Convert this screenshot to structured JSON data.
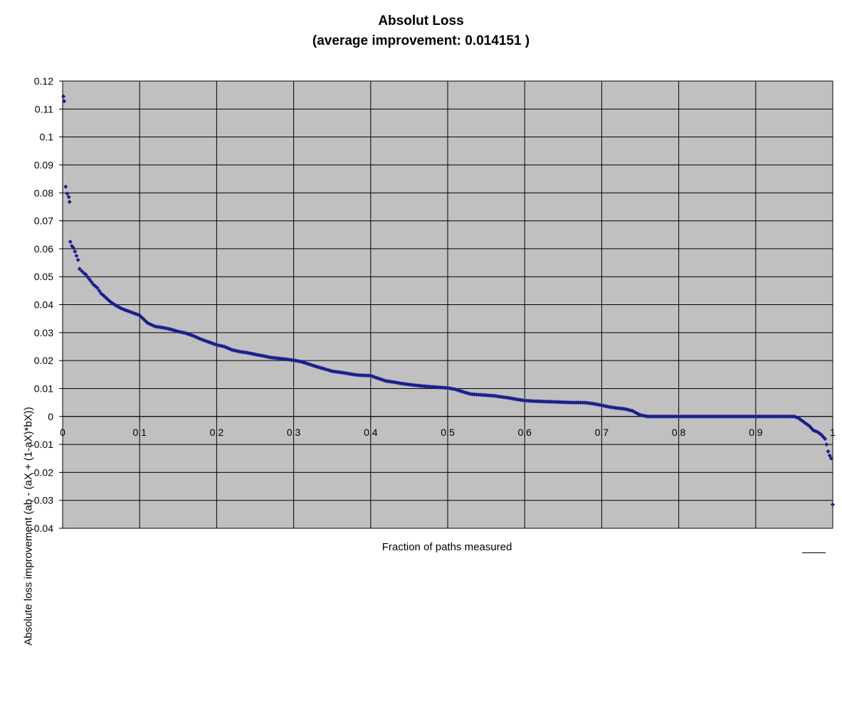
{
  "chart_data": {
    "type": "scatter",
    "title": "Absolut Loss",
    "subtitle": "(average improvement:  0.014151 )",
    "xlabel": "Fraction of paths measured",
    "ylabel": "Absolute loss improvement (ab - (aX + (1-aX)*bX))",
    "xlim": [
      0,
      1
    ],
    "ylim": [
      -0.04,
      0.12
    ],
    "x_ticks": [
      "0",
      "0.1",
      "0.2",
      "0.3",
      "0.4",
      "0.5",
      "0.6",
      "0.7",
      "0.8",
      "0.9",
      "1"
    ],
    "y_ticks": [
      "0.12",
      "0.11",
      "0.1",
      "0.09",
      "0.08",
      "0.07",
      "0.06",
      "0.05",
      "0.04",
      "0.03",
      "0.02",
      "0.01",
      "0",
      "-0.01",
      "-0.02",
      "-0.03",
      "-0.04"
    ],
    "grid": true,
    "legend": "none",
    "series": [
      {
        "color": "#1a1f8c",
        "marker": "diamond",
        "points": [
          [
            0.001,
            0.1145
          ],
          [
            0.002,
            0.1128
          ],
          [
            0.004,
            0.0822
          ],
          [
            0.006,
            0.0797
          ],
          [
            0.008,
            0.0785
          ],
          [
            0.009,
            0.0768
          ],
          [
            0.01,
            0.0625
          ],
          [
            0.012,
            0.061
          ],
          [
            0.014,
            0.0603
          ],
          [
            0.016,
            0.059
          ],
          [
            0.018,
            0.0575
          ],
          [
            0.02,
            0.056
          ],
          [
            0.022,
            0.0528
          ],
          [
            0.025,
            0.052
          ],
          [
            0.028,
            0.0512
          ],
          [
            0.03,
            0.0508
          ],
          [
            0.035,
            0.049
          ],
          [
            0.04,
            0.0472
          ],
          [
            0.045,
            0.046
          ],
          [
            0.05,
            0.044
          ],
          [
            0.055,
            0.0428
          ],
          [
            0.06,
            0.0415
          ],
          [
            0.065,
            0.0404
          ],
          [
            0.07,
            0.0396
          ],
          [
            0.075,
            0.0388
          ],
          [
            0.08,
            0.0382
          ],
          [
            0.09,
            0.0372
          ],
          [
            0.1,
            0.0362
          ],
          [
            0.11,
            0.0335
          ],
          [
            0.12,
            0.0322
          ],
          [
            0.13,
            0.0318
          ],
          [
            0.14,
            0.0312
          ],
          [
            0.15,
            0.0304
          ],
          [
            0.16,
            0.0298
          ],
          [
            0.17,
            0.0288
          ],
          [
            0.18,
            0.0276
          ],
          [
            0.19,
            0.0266
          ],
          [
            0.2,
            0.0256
          ],
          [
            0.21,
            0.025
          ],
          [
            0.22,
            0.0238
          ],
          [
            0.23,
            0.0232
          ],
          [
            0.24,
            0.0228
          ],
          [
            0.25,
            0.0222
          ],
          [
            0.26,
            0.0217
          ],
          [
            0.27,
            0.0211
          ],
          [
            0.28,
            0.0208
          ],
          [
            0.29,
            0.0205
          ],
          [
            0.3,
            0.0201
          ],
          [
            0.31,
            0.0196
          ],
          [
            0.32,
            0.0187
          ],
          [
            0.33,
            0.0178
          ],
          [
            0.34,
            0.017
          ],
          [
            0.35,
            0.0162
          ],
          [
            0.36,
            0.0158
          ],
          [
            0.37,
            0.0154
          ],
          [
            0.38,
            0.0149
          ],
          [
            0.39,
            0.0147
          ],
          [
            0.4,
            0.0146
          ],
          [
            0.41,
            0.0136
          ],
          [
            0.42,
            0.0127
          ],
          [
            0.43,
            0.0123
          ],
          [
            0.44,
            0.0118
          ],
          [
            0.45,
            0.0114
          ],
          [
            0.46,
            0.0111
          ],
          [
            0.47,
            0.0108
          ],
          [
            0.48,
            0.0106
          ],
          [
            0.49,
            0.0104
          ],
          [
            0.5,
            0.0102
          ],
          [
            0.51,
            0.0097
          ],
          [
            0.52,
            0.0088
          ],
          [
            0.53,
            0.008
          ],
          [
            0.54,
            0.0078
          ],
          [
            0.55,
            0.0076
          ],
          [
            0.56,
            0.0074
          ],
          [
            0.57,
            0.007
          ],
          [
            0.58,
            0.0066
          ],
          [
            0.59,
            0.0061
          ],
          [
            0.6,
            0.0057
          ],
          [
            0.61,
            0.0055
          ],
          [
            0.62,
            0.0054
          ],
          [
            0.63,
            0.0053
          ],
          [
            0.64,
            0.0052
          ],
          [
            0.65,
            0.0051
          ],
          [
            0.66,
            0.005
          ],
          [
            0.67,
            0.005
          ],
          [
            0.68,
            0.0049
          ],
          [
            0.69,
            0.0045
          ],
          [
            0.7,
            0.004
          ],
          [
            0.71,
            0.0034
          ],
          [
            0.72,
            0.003
          ],
          [
            0.73,
            0.0027
          ],
          [
            0.74,
            0.002
          ],
          [
            0.75,
            0.0005
          ],
          [
            0.76,
            0.0
          ],
          [
            0.8,
            0.0
          ],
          [
            0.85,
            0.0
          ],
          [
            0.9,
            0.0
          ],
          [
            0.94,
            0.0
          ],
          [
            0.95,
            0.0
          ],
          [
            0.955,
            -0.0005
          ],
          [
            0.96,
            -0.0015
          ],
          [
            0.965,
            -0.0025
          ],
          [
            0.97,
            -0.0035
          ],
          [
            0.975,
            -0.005
          ],
          [
            0.98,
            -0.0055
          ],
          [
            0.985,
            -0.0065
          ],
          [
            0.99,
            -0.008
          ],
          [
            0.992,
            -0.01
          ],
          [
            0.994,
            -0.0125
          ],
          [
            0.996,
            -0.014
          ],
          [
            0.998,
            -0.015
          ],
          [
            1.0,
            -0.0315
          ]
        ]
      }
    ]
  }
}
